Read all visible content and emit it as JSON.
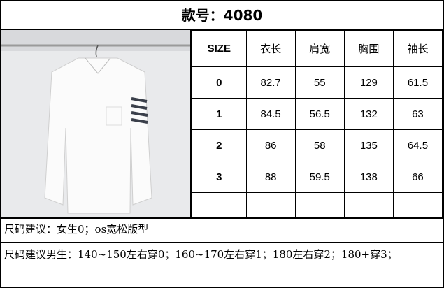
{
  "title": "款号：4080",
  "headers": [
    "SIZE",
    "衣长",
    "肩宽",
    "胸围",
    "袖长"
  ],
  "rows": [
    [
      "0",
      "82.7",
      "55",
      "129",
      "61.5"
    ],
    [
      "1",
      "84.5",
      "56.5",
      "132",
      "63"
    ],
    [
      "2",
      "86",
      "58",
      "135",
      "64.5"
    ],
    [
      "3",
      "88",
      "59.5",
      "138",
      "66"
    ]
  ],
  "notes": {
    "female": "尺码建议：女生0；os宽松版型",
    "male": "尺码建议男生：140~150左右穿0；160~170左右穿1；180左右穿2；180+穿3；"
  }
}
